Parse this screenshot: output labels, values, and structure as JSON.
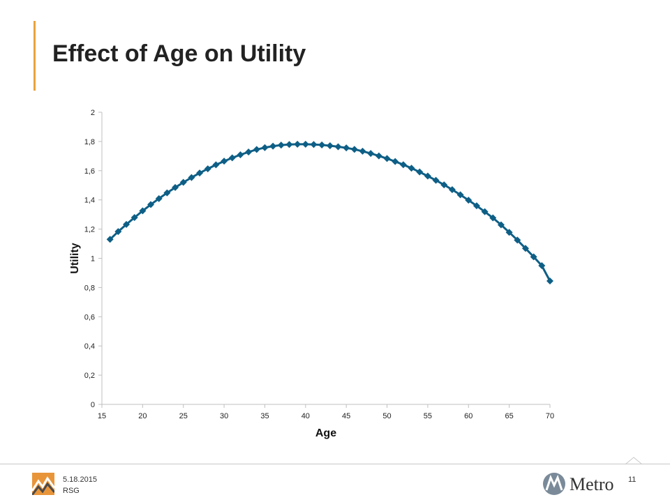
{
  "slide": {
    "title": "Effect of Age on Utility"
  },
  "footer": {
    "date": "5.18.2015",
    "org": "RSG",
    "page_number": "11",
    "brand": "Metro",
    "left_logo_icon": "rsg-mountain-logo-icon",
    "right_logo_icon": "metro-m-logo-icon"
  },
  "colors": {
    "accent": "#e8a33d",
    "series": "#0e5f86",
    "axis": "#bfbfbf"
  },
  "chart_data": {
    "type": "line",
    "xlabel": "Age",
    "ylabel": "Utility",
    "xlim": [
      15,
      70
    ],
    "ylim": [
      0,
      2
    ],
    "x_ticks": [
      "15",
      "20",
      "25",
      "30",
      "35",
      "40",
      "45",
      "50",
      "55",
      "60",
      "65",
      "70"
    ],
    "y_ticks": [
      "0",
      "0,2",
      "0,4",
      "0,6",
      "0,8",
      "1",
      "1,2",
      "1,4",
      "1,6",
      "1,8",
      "2"
    ],
    "grid": false,
    "legend": "none",
    "marker": "diamond",
    "series": [
      {
        "x": [
          16,
          17,
          18,
          19,
          20,
          21,
          22,
          23,
          24,
          25,
          26,
          27,
          28,
          29,
          30,
          31,
          32,
          33,
          34,
          35,
          36,
          37,
          38,
          39,
          40,
          41,
          42,
          43,
          44,
          45,
          46,
          47,
          48,
          49,
          50,
          51,
          52,
          53,
          54,
          55,
          56,
          57,
          58,
          59,
          60,
          61,
          62,
          63,
          64,
          65,
          66,
          67,
          68,
          69,
          70
        ],
        "values": [
          1.13,
          1.183,
          1.232,
          1.279,
          1.325,
          1.368,
          1.409,
          1.448,
          1.485,
          1.52,
          1.553,
          1.584,
          1.613,
          1.64,
          1.665,
          1.688,
          1.709,
          1.728,
          1.745,
          1.758,
          1.768,
          1.775,
          1.779,
          1.781,
          1.781,
          1.779,
          1.776,
          1.771,
          1.764,
          1.756,
          1.746,
          1.733,
          1.718,
          1.701,
          1.683,
          1.663,
          1.641,
          1.617,
          1.591,
          1.563,
          1.534,
          1.503,
          1.47,
          1.435,
          1.398,
          1.36,
          1.319,
          1.277,
          1.229,
          1.178,
          1.125,
          1.068,
          1.01,
          0.95,
          0.845
        ]
      }
    ]
  }
}
